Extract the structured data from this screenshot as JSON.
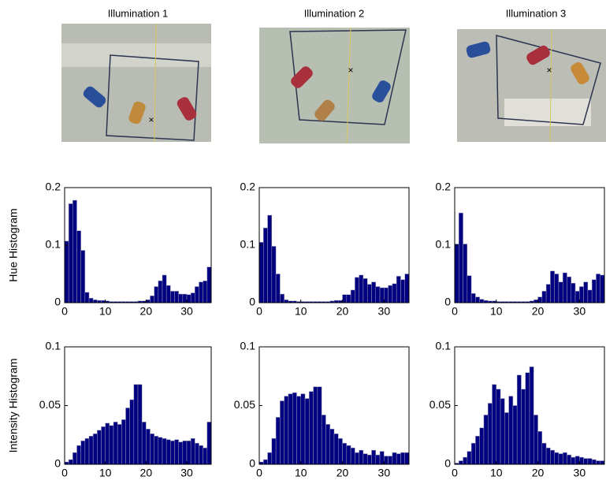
{
  "chart_data": [
    {
      "type": "histogram",
      "title": "Illumination 1",
      "ylabel": "Hue Histogram",
      "color": "#000080",
      "bins": [
        0,
        1,
        2,
        3,
        4,
        5,
        6,
        7,
        8,
        9,
        10,
        11,
        12,
        13,
        14,
        15,
        16,
        17,
        18,
        19,
        20,
        21,
        22,
        23,
        24,
        25,
        26,
        27,
        28,
        29,
        30,
        31,
        32,
        33,
        34,
        35,
        36
      ],
      "values": [
        0.107,
        0.172,
        0.178,
        0.125,
        0.091,
        0.018,
        0.008,
        0.005,
        0.004,
        0.004,
        0.003,
        0.002,
        0.002,
        0.002,
        0.002,
        0.002,
        0.002,
        0.002,
        0.003,
        0.003,
        0.005,
        0.012,
        0.028,
        0.038,
        0.048,
        0.03,
        0.02,
        0.02,
        0.015,
        0.015,
        0.014,
        0.017,
        0.028,
        0.036,
        0.038,
        0.062
      ],
      "xlim": [
        0,
        36
      ],
      "xticks": [
        0,
        10,
        20,
        30
      ],
      "ylim": [
        0,
        0.2
      ],
      "yticks": [
        0,
        0.1,
        0.2
      ]
    },
    {
      "type": "histogram",
      "title": "Illumination 2",
      "color": "#000080",
      "bins": [
        0,
        1,
        2,
        3,
        4,
        5,
        6,
        7,
        8,
        9,
        10,
        11,
        12,
        13,
        14,
        15,
        16,
        17,
        18,
        19,
        20,
        21,
        22,
        23,
        24,
        25,
        26,
        27,
        28,
        29,
        30,
        31,
        32,
        33,
        34,
        35,
        36
      ],
      "values": [
        0.105,
        0.13,
        0.152,
        0.098,
        0.05,
        0.015,
        0.005,
        0.003,
        0.003,
        0.002,
        0.002,
        0.002,
        0.002,
        0.002,
        0.002,
        0.002,
        0.002,
        0.003,
        0.004,
        0.004,
        0.014,
        0.014,
        0.022,
        0.044,
        0.048,
        0.042,
        0.032,
        0.036,
        0.028,
        0.026,
        0.026,
        0.03,
        0.033,
        0.046,
        0.04,
        0.05
      ],
      "xlim": [
        0,
        36
      ],
      "xticks": [
        0,
        10,
        20,
        30
      ],
      "ylim": [
        0,
        0.2
      ],
      "yticks": [
        0,
        0.1,
        0.2
      ]
    },
    {
      "type": "histogram",
      "title": "Illumination 3",
      "color": "#000080",
      "bins": [
        0,
        1,
        2,
        3,
        4,
        5,
        6,
        7,
        8,
        9,
        10,
        11,
        12,
        13,
        14,
        15,
        16,
        17,
        18,
        19,
        20,
        21,
        22,
        23,
        24,
        25,
        26,
        27,
        28,
        29,
        30,
        31,
        32,
        33,
        34,
        35,
        36
      ],
      "values": [
        0.102,
        0.156,
        0.102,
        0.047,
        0.016,
        0.01,
        0.006,
        0.004,
        0.003,
        0.003,
        0.002,
        0.002,
        0.002,
        0.002,
        0.002,
        0.002,
        0.002,
        0.002,
        0.003,
        0.005,
        0.01,
        0.02,
        0.032,
        0.055,
        0.05,
        0.036,
        0.052,
        0.045,
        0.034,
        0.02,
        0.028,
        0.036,
        0.022,
        0.04,
        0.05,
        0.048
      ],
      "xlim": [
        0,
        36
      ],
      "xticks": [
        0,
        10,
        20,
        30
      ],
      "ylim": [
        0,
        0.2
      ],
      "yticks": [
        0,
        0.1,
        0.2
      ]
    },
    {
      "type": "histogram",
      "ylabel": "Intensity Histogram",
      "color": "#000080",
      "bins": [
        0,
        1,
        2,
        3,
        4,
        5,
        6,
        7,
        8,
        9,
        10,
        11,
        12,
        13,
        14,
        15,
        16,
        17,
        18,
        19,
        20,
        21,
        22,
        23,
        24,
        25,
        26,
        27,
        28,
        29,
        30,
        31,
        32,
        33,
        34,
        35,
        36
      ],
      "values": [
        0.002,
        0.004,
        0.01,
        0.016,
        0.02,
        0.022,
        0.024,
        0.026,
        0.029,
        0.032,
        0.035,
        0.033,
        0.036,
        0.034,
        0.038,
        0.048,
        0.055,
        0.068,
        0.068,
        0.036,
        0.03,
        0.026,
        0.024,
        0.023,
        0.022,
        0.021,
        0.02,
        0.021,
        0.019,
        0.02,
        0.02,
        0.022,
        0.018,
        0.016,
        0.014,
        0.036
      ],
      "xlim": [
        0,
        36
      ],
      "xticks": [
        0,
        10,
        20,
        30
      ],
      "ylim": [
        0,
        0.1
      ],
      "yticks": [
        0,
        0.05,
        0.1
      ]
    },
    {
      "type": "histogram",
      "color": "#000080",
      "bins": [
        0,
        1,
        2,
        3,
        4,
        5,
        6,
        7,
        8,
        9,
        10,
        11,
        12,
        13,
        14,
        15,
        16,
        17,
        18,
        19,
        20,
        21,
        22,
        23,
        24,
        25,
        26,
        27,
        28,
        29,
        30,
        31,
        32,
        33,
        34,
        35,
        36
      ],
      "values": [
        0.002,
        0.004,
        0.01,
        0.022,
        0.04,
        0.054,
        0.058,
        0.06,
        0.061,
        0.058,
        0.06,
        0.056,
        0.062,
        0.066,
        0.066,
        0.042,
        0.034,
        0.03,
        0.026,
        0.022,
        0.018,
        0.016,
        0.014,
        0.01,
        0.012,
        0.009,
        0.008,
        0.012,
        0.008,
        0.011,
        0.007,
        0.007,
        0.01,
        0.009,
        0.01,
        0.01
      ],
      "xlim": [
        0,
        36
      ],
      "xticks": [
        0,
        10,
        20,
        30
      ],
      "ylim": [
        0,
        0.1
      ],
      "yticks": [
        0,
        0.05,
        0.1
      ]
    },
    {
      "type": "histogram",
      "color": "#000080",
      "bins": [
        0,
        1,
        2,
        3,
        4,
        5,
        6,
        7,
        8,
        9,
        10,
        11,
        12,
        13,
        14,
        15,
        16,
        17,
        18,
        19,
        20,
        21,
        22,
        23,
        24,
        25,
        26,
        27,
        28,
        29,
        30,
        31,
        32,
        33,
        34,
        35,
        36
      ],
      "values": [
        0.001,
        0.003,
        0.006,
        0.011,
        0.018,
        0.024,
        0.031,
        0.042,
        0.052,
        0.068,
        0.064,
        0.056,
        0.044,
        0.058,
        0.05,
        0.076,
        0.064,
        0.078,
        0.083,
        0.042,
        0.028,
        0.018,
        0.014,
        0.012,
        0.01,
        0.009,
        0.01,
        0.008,
        0.006,
        0.007,
        0.006,
        0.005,
        0.005,
        0.004,
        0.003,
        0.003
      ],
      "xlim": [
        0,
        36
      ],
      "xticks": [
        0,
        10,
        20,
        30
      ],
      "ylim": [
        0,
        0.1
      ],
      "yticks": [
        0,
        0.05,
        0.1
      ]
    }
  ]
}
